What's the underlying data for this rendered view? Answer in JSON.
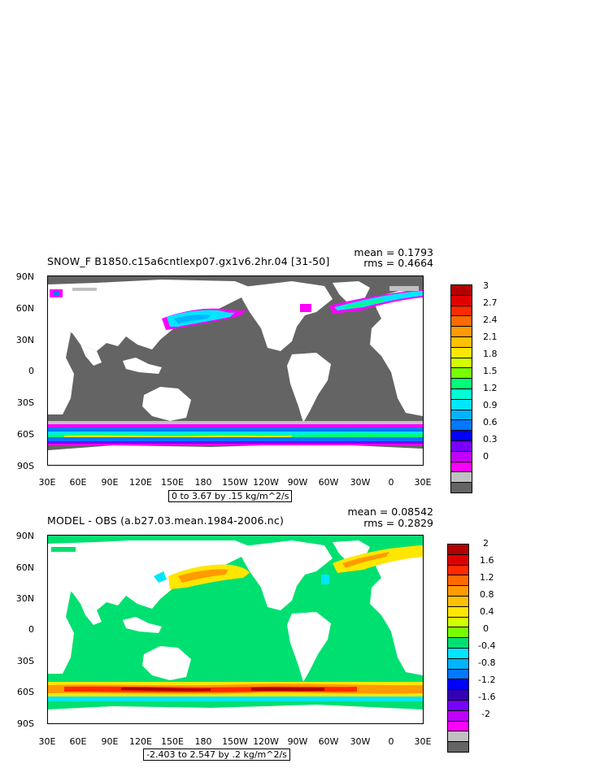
{
  "panels": [
    {
      "title": "SNOW_F B1850.c15a6cntlexp07.gx1v6.2hr.04 [31-50]",
      "stat_mean": "mean = 0.1793",
      "stat_rms": "rms = 0.4664",
      "y_labels": [
        "90N",
        "60N",
        "30N",
        "0",
        "30S",
        "60S",
        "90S"
      ],
      "x_labels": [
        "30E",
        "60E",
        "90E",
        "120E",
        "150E",
        "180",
        "150W",
        "120W",
        "90W",
        "60W",
        "30W",
        "0",
        "30E"
      ],
      "range_text": "0 to 3.67 by .15 kg/m^2/s",
      "colorbar": {
        "labels": [
          "3",
          "2.7",
          "2.4",
          "2.1",
          "1.8",
          "1.5",
          "1.2",
          "0.9",
          "0.6",
          "0.3",
          "0"
        ],
        "colors": [
          "#b40000",
          "#e00000",
          "#ff2a00",
          "#ff6a00",
          "#ff9a00",
          "#ffc000",
          "#ffe600",
          "#d2ff00",
          "#78ff00",
          "#00ff78",
          "#00ffd2",
          "#00e6ff",
          "#00b4ff",
          "#0078ff",
          "#0000ff",
          "#7800ff",
          "#c000ff",
          "#ff00ff",
          "#c0c0c0",
          "#646464"
        ]
      }
    },
    {
      "title": "MODEL - OBS (a.b27.03.mean.1984-2006.nc)",
      "stat_mean": "mean = 0.08542",
      "stat_rms": "rms = 0.2829",
      "y_labels": [
        "90N",
        "60N",
        "30N",
        "0",
        "30S",
        "60S",
        "90S"
      ],
      "x_labels": [
        "30E",
        "60E",
        "90E",
        "120E",
        "150E",
        "180",
        "150W",
        "120W",
        "90W",
        "60W",
        "30W",
        "0",
        "30E"
      ],
      "range_text": "-2.403 to 2.547 by .2 kg/m^2/s",
      "colorbar": {
        "labels": [
          "2",
          "1.6",
          "1.2",
          "0.8",
          "0.4",
          "0",
          "-0.4",
          "-0.8",
          "-1.2",
          "-1.6",
          "-2"
        ],
        "colors": [
          "#b40000",
          "#e00000",
          "#ff2a00",
          "#ff6a00",
          "#ff9a00",
          "#ffc000",
          "#ffe600",
          "#d2ff00",
          "#78ff00",
          "#00e070",
          "#00e6ff",
          "#00b4ff",
          "#0078ff",
          "#0000ff",
          "#3200b4",
          "#7800ff",
          "#c000ff",
          "#ff00ff",
          "#c0c0c0",
          "#646464"
        ]
      }
    }
  ]
}
